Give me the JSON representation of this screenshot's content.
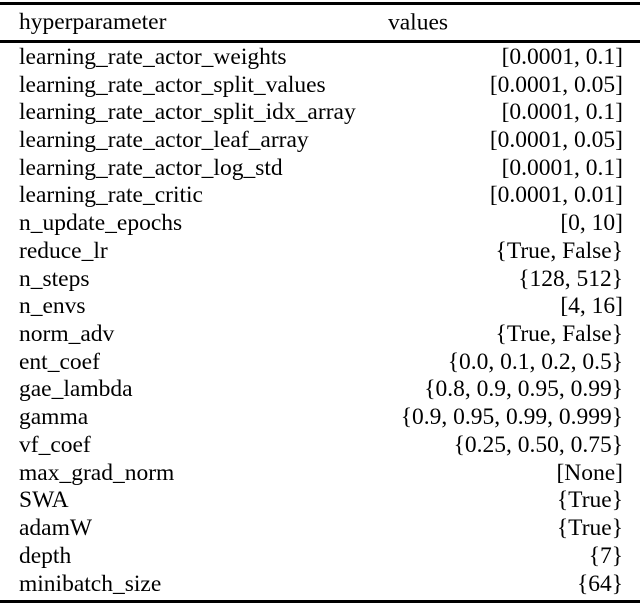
{
  "table": {
    "columns": {
      "param_header": "hyperparameter",
      "values_header": "values"
    },
    "rows": [
      {
        "param": "learning_rate_actor_weights",
        "value": "[0.0001, 0.1]"
      },
      {
        "param": "learning_rate_actor_split_values",
        "value": "[0.0001, 0.05]"
      },
      {
        "param": "learning_rate_actor_split_idx_array",
        "value": "[0.0001, 0.1]"
      },
      {
        "param": "learning_rate_actor_leaf_array",
        "value": "[0.0001, 0.05]"
      },
      {
        "param": "learning_rate_actor_log_std",
        "value": "[0.0001, 0.1]"
      },
      {
        "param": "learning_rate_critic",
        "value": "[0.0001, 0.01]"
      },
      {
        "param": "n_update_epochs",
        "value": "[0, 10]"
      },
      {
        "param": "reduce_lr",
        "value": "{True, False}"
      },
      {
        "param": "n_steps",
        "value": "{128, 512}"
      },
      {
        "param": "n_envs",
        "value": "[4, 16]"
      },
      {
        "param": "norm_adv",
        "value": "{True, False}"
      },
      {
        "param": "ent_coef",
        "value": "{0.0, 0.1, 0.2, 0.5}"
      },
      {
        "param": "gae_lambda",
        "value": "{0.8, 0.9, 0.95, 0.99}"
      },
      {
        "param": "gamma",
        "value": "{0.9, 0.95, 0.99, 0.999}"
      },
      {
        "param": "vf_coef",
        "value": "{0.25, 0.50, 0.75}"
      },
      {
        "param": "max_grad_norm",
        "value": "[None]"
      },
      {
        "param": "SWA",
        "value": "{True}"
      },
      {
        "param": "adamW",
        "value": "{True}"
      },
      {
        "param": "depth",
        "value": "{7}"
      },
      {
        "param": "minibatch_size",
        "value": "{64}"
      }
    ]
  },
  "colors": {
    "text": "#000000",
    "rule": "#000000",
    "background": "#ffffff"
  }
}
